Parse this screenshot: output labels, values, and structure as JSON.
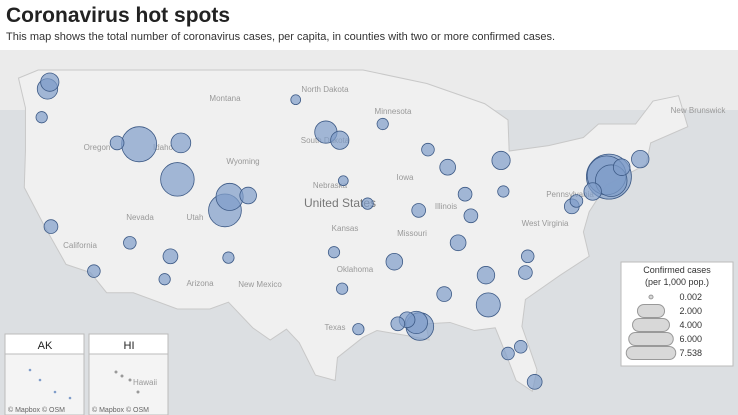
{
  "header": {
    "title": "Coronavirus hot spots",
    "subtitle": "This map shows the total number of coronavirus cases, per capita, in counties with two or more confirmed cases."
  },
  "map": {
    "labels": [
      "Montana",
      "North Dakota",
      "Minnesota",
      "South Dakota",
      "Idaho",
      "Wyoming",
      "Oregon",
      "Nevada",
      "Utah",
      "Nebraska",
      "United States",
      "Iowa",
      "Illinois",
      "Kansas",
      "Missouri",
      "Oklahoma",
      "Arizona",
      "New Mexico",
      "Texas",
      "New Brunswick",
      "Pennsylvania",
      "West Virginia",
      "California"
    ],
    "points": [
      {
        "lon": -73.8,
        "lat": 41.1,
        "value": 7.538
      },
      {
        "lon": -74.0,
        "lat": 41.2,
        "value": 5.5
      },
      {
        "lon": -73.6,
        "lat": 40.8,
        "value": 3.5
      },
      {
        "lon": -114.3,
        "lat": 43.5,
        "value": 4.4
      },
      {
        "lon": -111.0,
        "lat": 40.9,
        "value": 4.0
      },
      {
        "lon": -106.9,
        "lat": 38.6,
        "value": 3.8
      },
      {
        "lon": -106.5,
        "lat": 39.6,
        "value": 2.5
      },
      {
        "lon": -90.1,
        "lat": 30.0,
        "value": 2.6
      },
      {
        "lon": -90.4,
        "lat": 30.3,
        "value": 1.6
      },
      {
        "lon": -84.2,
        "lat": 31.6,
        "value": 1.9
      },
      {
        "lon": -98.2,
        "lat": 44.4,
        "value": 1.6
      },
      {
        "lon": -97.0,
        "lat": 43.8,
        "value": 1.0
      },
      {
        "lon": -122.2,
        "lat": 47.6,
        "value": 1.3
      },
      {
        "lon": -122.0,
        "lat": 48.1,
        "value": 1.0
      },
      {
        "lon": -110.7,
        "lat": 43.6,
        "value": 1.2
      },
      {
        "lon": -83.1,
        "lat": 42.3,
        "value": 1.0
      },
      {
        "lon": -87.7,
        "lat": 41.8,
        "value": 0.7
      },
      {
        "lon": -86.8,
        "lat": 36.2,
        "value": 0.7
      },
      {
        "lon": -92.3,
        "lat": 34.8,
        "value": 0.8
      },
      {
        "lon": -88.0,
        "lat": 32.4,
        "value": 0.6
      },
      {
        "lon": -71.1,
        "lat": 42.4,
        "value": 0.9
      },
      {
        "lon": -72.7,
        "lat": 41.8,
        "value": 0.8
      },
      {
        "lon": -75.2,
        "lat": 40.0,
        "value": 0.9
      },
      {
        "lon": -80.2,
        "lat": 25.9,
        "value": 0.6
      },
      {
        "lon": -82.5,
        "lat": 28.0,
        "value": 0.4
      },
      {
        "lon": -81.4,
        "lat": 28.5,
        "value": 0.4
      },
      {
        "lon": -118.2,
        "lat": 34.1,
        "value": 0.4
      },
      {
        "lon": -121.9,
        "lat": 37.4,
        "value": 0.5
      },
      {
        "lon": -95.4,
        "lat": 29.8,
        "value": 0.3
      },
      {
        "lon": -96.8,
        "lat": 32.8,
        "value": 0.3
      },
      {
        "lon": -112.1,
        "lat": 33.5,
        "value": 0.3
      },
      {
        "lon": -111.6,
        "lat": 35.2,
        "value": 0.6
      },
      {
        "lon": -104.9,
        "lat": 39.7,
        "value": 0.8
      },
      {
        "lon": -90.2,
        "lat": 38.6,
        "value": 0.5
      },
      {
        "lon": -84.4,
        "lat": 33.8,
        "value": 0.9
      },
      {
        "lon": -85.7,
        "lat": 38.2,
        "value": 0.5
      },
      {
        "lon": -93.3,
        "lat": 45.0,
        "value": 0.3
      },
      {
        "lon": -89.4,
        "lat": 43.1,
        "value": 0.4
      },
      {
        "lon": -80.8,
        "lat": 35.2,
        "value": 0.4
      },
      {
        "lon": -77.0,
        "lat": 38.9,
        "value": 0.6
      },
      {
        "lon": -76.6,
        "lat": 39.3,
        "value": 0.4
      },
      {
        "lon": -82.9,
        "lat": 40.0,
        "value": 0.3
      },
      {
        "lon": -86.2,
        "lat": 39.8,
        "value": 0.5
      },
      {
        "lon": -94.6,
        "lat": 39.1,
        "value": 0.3
      },
      {
        "lon": -97.5,
        "lat": 35.5,
        "value": 0.3
      },
      {
        "lon": -106.6,
        "lat": 35.1,
        "value": 0.3
      },
      {
        "lon": -115.1,
        "lat": 36.2,
        "value": 0.4
      },
      {
        "lon": -116.2,
        "lat": 43.6,
        "value": 0.5
      },
      {
        "lon": -122.7,
        "lat": 45.5,
        "value": 0.3
      },
      {
        "lon": -81.0,
        "lat": 34.0,
        "value": 0.5
      },
      {
        "lon": -91.2,
        "lat": 30.5,
        "value": 0.7
      },
      {
        "lon": -92.0,
        "lat": 30.2,
        "value": 0.5
      },
      {
        "lon": -100.8,
        "lat": 46.8,
        "value": 0.2
      },
      {
        "lon": -96.7,
        "lat": 40.8,
        "value": 0.2
      }
    ],
    "insets": [
      "AK",
      "HI"
    ],
    "inset_labels": [
      "Hawaii"
    ],
    "credit": "© Mapbox © OSM"
  },
  "legend": {
    "title": "Confirmed cases",
    "subtitle": "(per 1,000 pop.)",
    "sizes": [
      0.002,
      {
        "value": 2,
        "label": "2.000"
      },
      {
        "value": 4,
        "label": "4.000"
      },
      {
        "value": 6,
        "label": "6.000"
      },
      7.538
    ]
  }
}
